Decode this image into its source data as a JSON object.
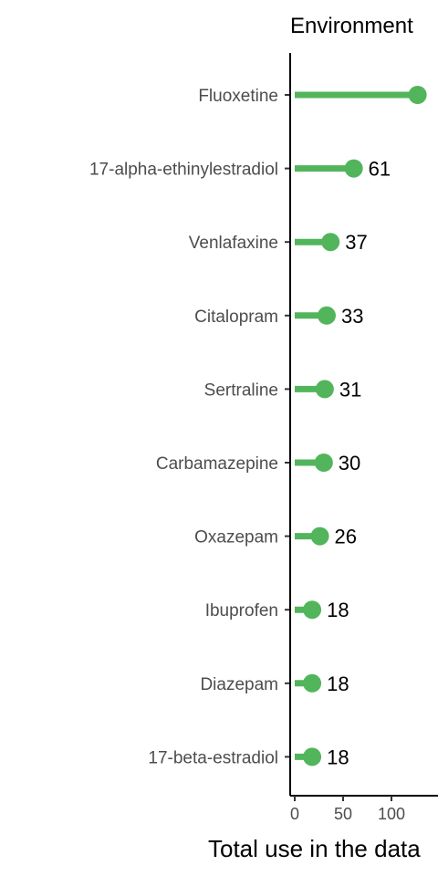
{
  "chart_data": {
    "type": "lollipop",
    "title": "Environment",
    "xlabel": "Total use in the data",
    "ylabel": "",
    "categories": [
      "Fluoxetine",
      "17-alpha-ethinylestradiol",
      "Venlafaxine",
      "Citalopram",
      "Sertraline",
      "Carbamazepine",
      "Oxazepam",
      "Ibuprofen",
      "Diazepam",
      "17-beta-estradiol"
    ],
    "values": [
      127,
      61,
      37,
      33,
      31,
      30,
      26,
      18,
      18,
      18
    ],
    "value_labels": [
      "",
      "61",
      "37",
      "33",
      "31",
      "30",
      "26",
      "18",
      "18",
      "18"
    ],
    "x_ticks": [
      0,
      50,
      100
    ],
    "xlim": [
      -5,
      130
    ],
    "color": "#52b55b",
    "grid": false,
    "legend": "none"
  }
}
